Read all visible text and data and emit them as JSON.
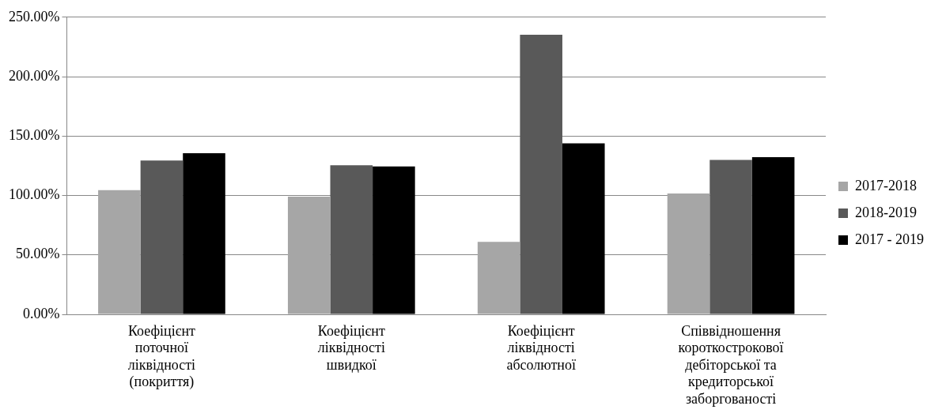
{
  "chart_data": {
    "type": "bar",
    "categories": [
      "Коефіцієнт поточної ліквідності (покриття)",
      "Коефіцієнт ліквідності швидкої",
      "Коефіцієнт ліквідності абсолютної",
      "Співвідношення короткострокової дебіторської та кредиторської заборгованості"
    ],
    "series": [
      {
        "name": "2017-2018",
        "color": "#a6a6a6",
        "values": [
          104.5,
          99,
          61,
          101.7
        ]
      },
      {
        "name": "2018-2019",
        "color": "#595959",
        "values": [
          129.4,
          125.4,
          235.3,
          130
        ]
      },
      {
        "name": "2017 - 2019",
        "color": "#000000",
        "values": [
          135.6,
          124.4,
          143.8,
          132.3
        ]
      }
    ],
    "ylim": [
      0,
      250
    ],
    "yticks": [
      {
        "value": 0,
        "label": "0.00%"
      },
      {
        "value": 50,
        "label": "50.00%"
      },
      {
        "value": 100,
        "label": "100.00%"
      },
      {
        "value": 150,
        "label": "150.00%"
      },
      {
        "value": 200,
        "label": "200.00%"
      },
      {
        "value": 250,
        "label": "250.00%"
      }
    ],
    "grid": "y",
    "legend": "right"
  }
}
